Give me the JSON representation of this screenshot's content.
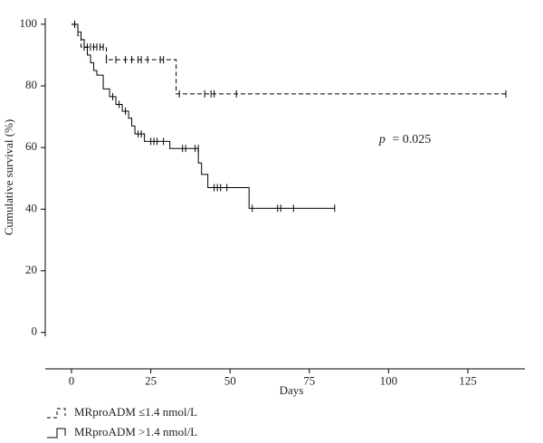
{
  "chart_data": {
    "type": "line",
    "subtype": "kaplan-meier",
    "xlabel": "Days",
    "ylabel": "Cumulative survival (%)",
    "xlim": [
      -8,
      143
    ],
    "ylim": [
      -8,
      102
    ],
    "xticks": [
      0,
      25,
      50,
      75,
      100,
      125
    ],
    "yticks": [
      0,
      20,
      40,
      60,
      80,
      100
    ],
    "grid": false,
    "legend_position": "bottom-left",
    "annotation": {
      "p_label": "p",
      "p_value": "= 0.025",
      "x": 97,
      "y": 61.5
    },
    "series": [
      {
        "name": "MRproADM ≤1.4 nmol/L",
        "line_style": "dashed",
        "steps": [
          [
            0,
            100
          ],
          [
            2,
            96.3
          ],
          [
            3,
            92.6
          ],
          [
            11,
            88.5
          ],
          [
            33,
            77.4
          ],
          [
            137,
            77.4
          ]
        ],
        "censored": [
          [
            1,
            100
          ],
          [
            4,
            92.6
          ],
          [
            5,
            92.6
          ],
          [
            6,
            92.6
          ],
          [
            7,
            92.6
          ],
          [
            8,
            92.6
          ],
          [
            9,
            92.6
          ],
          [
            10,
            92.6
          ],
          [
            11,
            88.5
          ],
          [
            14,
            88.5
          ],
          [
            17,
            88.5
          ],
          [
            19,
            88.5
          ],
          [
            21,
            88.5
          ],
          [
            22,
            88.5
          ],
          [
            24,
            88.5
          ],
          [
            28,
            88.5
          ],
          [
            29,
            88.5
          ],
          [
            34,
            77.4
          ],
          [
            42,
            77.4
          ],
          [
            44,
            77.4
          ],
          [
            45,
            77.4
          ],
          [
            52,
            77.4
          ],
          [
            137,
            77.4
          ]
        ]
      },
      {
        "name": "MRproADM >1.4 nmol/L",
        "line_style": "solid",
        "steps": [
          [
            0,
            100
          ],
          [
            2,
            97.5
          ],
          [
            3,
            95
          ],
          [
            4,
            92.5
          ],
          [
            5,
            90
          ],
          [
            6,
            87.5
          ],
          [
            7,
            85
          ],
          [
            8,
            83.5
          ],
          [
            10,
            79
          ],
          [
            12,
            76.5
          ],
          [
            14,
            74
          ],
          [
            16,
            71.8
          ],
          [
            18,
            69.5
          ],
          [
            19,
            67
          ],
          [
            20,
            64.4
          ],
          [
            23,
            62
          ],
          [
            31,
            59.7
          ],
          [
            40,
            55
          ],
          [
            41,
            51.3
          ],
          [
            43,
            47
          ],
          [
            56,
            40.3
          ],
          [
            83,
            40.3
          ]
        ],
        "censored": [
          [
            1,
            100
          ],
          [
            13,
            76.5
          ],
          [
            15,
            74
          ],
          [
            17,
            71.8
          ],
          [
            21,
            64.4
          ],
          [
            22,
            64.4
          ],
          [
            25,
            62
          ],
          [
            26,
            62
          ],
          [
            27,
            62
          ],
          [
            29,
            62
          ],
          [
            35,
            59.7
          ],
          [
            36,
            59.7
          ],
          [
            39,
            59.7
          ],
          [
            40,
            59.7
          ],
          [
            45,
            47
          ],
          [
            46,
            47
          ],
          [
            47,
            47
          ],
          [
            49,
            47
          ],
          [
            57,
            40.3
          ],
          [
            65,
            40.3
          ],
          [
            66,
            40.3
          ],
          [
            70,
            40.3
          ],
          [
            83,
            40.3
          ]
        ]
      }
    ]
  }
}
